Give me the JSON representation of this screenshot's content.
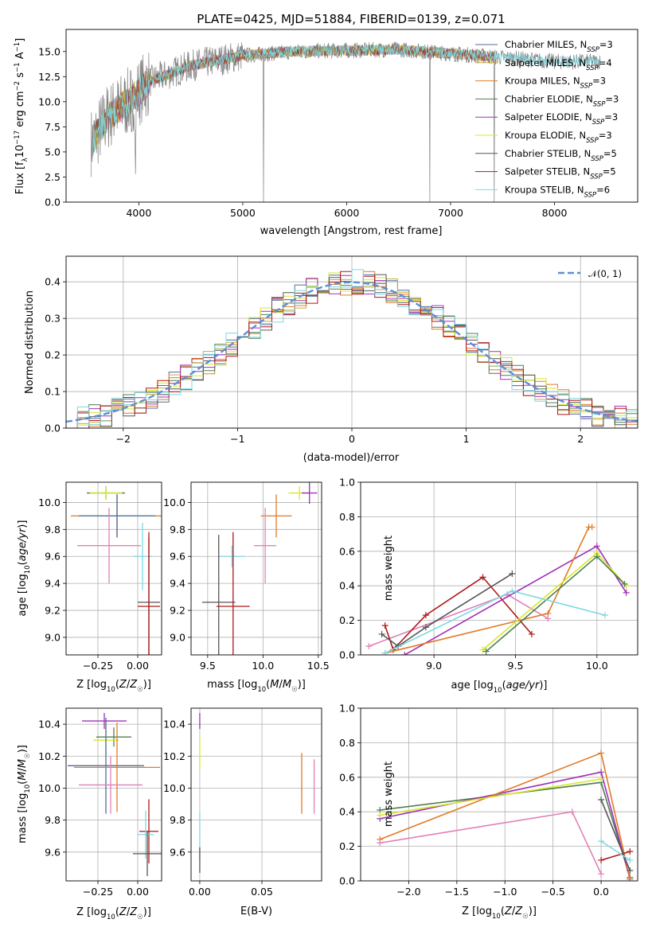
{
  "chart_data": [
    {
      "type": "line",
      "title": "PLATE=0425, MJD=51884, FIBERID=0139, z=0.071",
      "xlabel": "wavelength [Angstrom, rest frame]",
      "ylabel": "Flux [f_λ 10^-17 erg cm^-2 s^-1 A^-1]",
      "xlim": [
        3300,
        8800
      ],
      "ylim": [
        0,
        17.2
      ],
      "xticks": [
        "4000",
        "5000",
        "6000",
        "7000",
        "8000"
      ],
      "yticks": [
        "0.0",
        "2.5",
        "5.0",
        "7.5",
        "10.0",
        "12.5",
        "15.0"
      ],
      "grid": false,
      "legend_position": "right",
      "series": [
        {
          "name": "Chabrier MILES, N_SSP=3",
          "color": "#4d6e9e"
        },
        {
          "name": "Salpeter MILES, N_SSP=4",
          "color": "#c8ac3a"
        },
        {
          "name": "Kroupa MILES, N_SSP=3",
          "color": "#e07b28"
        },
        {
          "name": "Chabrier ELODIE, N_SSP=3",
          "color": "#4e7f4e"
        },
        {
          "name": "Salpeter ELODIE, N_SSP=3",
          "color": "#a030b8"
        },
        {
          "name": "Kroupa ELODIE, N_SSP=3",
          "color": "#d7e82a"
        },
        {
          "name": "Chabrier STELIB, N_SSP=5",
          "color": "#555555"
        },
        {
          "name": "Salpeter STELIB, N_SSP=5",
          "color": "#b01818"
        },
        {
          "name": "Kroupa STELIB, N_SSP=6",
          "color": "#7ed8e0"
        }
      ],
      "continuum": {
        "x": [
          3550,
          3700,
          3900,
          4100,
          4500,
          5000,
          5500,
          6000,
          6500,
          7000,
          7500,
          8000,
          8400
        ],
        "y": [
          6.0,
          8.5,
          10.0,
          12.0,
          13.6,
          14.6,
          15.0,
          15.1,
          15.2,
          14.8,
          14.4,
          14.0,
          14.0
        ]
      }
    },
    {
      "type": "line",
      "xlabel": "(data-model)/error",
      "ylabel": "Normed distribution",
      "xlim": [
        -2.5,
        2.5
      ],
      "ylim": [
        0,
        0.47
      ],
      "xticks": [
        "−2",
        "−1",
        "0",
        "1",
        "2"
      ],
      "yticks": [
        "0.0",
        "0.1",
        "0.2",
        "0.3",
        "0.4"
      ],
      "grid": true,
      "legend_position": "top-right",
      "series": [
        {
          "name": "𝒩(0, 1)",
          "function": "gaussian",
          "mean": 0,
          "sigma": 1,
          "color": "#5b8fd6"
        }
      ]
    },
    {
      "type": "scatter",
      "xlabel": "Z [log10(Z/Z☉)]",
      "ylabel": "age [log10(age/yr)]",
      "xlim": [
        -0.45,
        0.15
      ],
      "ylim": [
        8.87,
        10.15
      ],
      "xticks": [
        "−0.25",
        "0.00"
      ],
      "yticks": [
        "9.0",
        "9.2",
        "9.4",
        "9.6",
        "9.8",
        "10.0"
      ],
      "grid": true,
      "points": [
        {
          "x": -0.2,
          "y": 10.07,
          "xerr": 0.12,
          "yerr": 0.05,
          "color": "#4e7f4e"
        },
        {
          "x": -0.2,
          "y": 10.07,
          "xerr": 0.1,
          "yerr": 0.05,
          "color": "#d7e82a"
        },
        {
          "x": -0.13,
          "y": 9.9,
          "xerr": 0.29,
          "yerr": 0.16,
          "color": "#e07b28"
        },
        {
          "x": -0.13,
          "y": 9.9,
          "xerr": 0.24,
          "yerr": 0.16,
          "color": "#4d6e9e"
        },
        {
          "x": -0.18,
          "y": 9.68,
          "xerr": 0.2,
          "yerr": 0.28,
          "color": "#e080b8"
        },
        {
          "x": 0.03,
          "y": 9.6,
          "xerr": 0.06,
          "yerr": 0.25,
          "color": "#7ed8e0"
        },
        {
          "x": 0.07,
          "y": 9.26,
          "xerr": 0.07,
          "yerr": 0.48,
          "color": "#555555"
        },
        {
          "x": 0.07,
          "y": 9.23,
          "xerr": 0.07,
          "yerr": 0.55,
          "color": "#b01818"
        }
      ]
    },
    {
      "type": "scatter",
      "xlabel": "mass [log10(M/M☉)]",
      "ylabel": "",
      "xlim": [
        9.35,
        10.53
      ],
      "ylim": [
        8.87,
        10.15
      ],
      "xticks": [
        "9.5",
        "10.0",
        "10.5"
      ],
      "yticks": [
        "9.0",
        "9.2",
        "9.4",
        "9.6",
        "9.8",
        "10.0"
      ],
      "grid": true,
      "points": [
        {
          "x": 10.33,
          "y": 10.07,
          "xerr": 0.1,
          "yerr": 0.05,
          "color": "#d7e82a"
        },
        {
          "x": 10.42,
          "y": 10.07,
          "xerr": 0.07,
          "yerr": 0.08,
          "color": "#a030b8"
        },
        {
          "x": 10.12,
          "y": 9.9,
          "xerr": 0.14,
          "yerr": 0.16,
          "color": "#e07b28"
        },
        {
          "x": 10.02,
          "y": 9.68,
          "xerr": 0.1,
          "yerr": 0.28,
          "color": "#e080b8"
        },
        {
          "x": 9.72,
          "y": 9.6,
          "xerr": 0.12,
          "yerr": 0.08,
          "color": "#7ed8e0"
        },
        {
          "x": 9.6,
          "y": 9.26,
          "xerr": 0.15,
          "yerr": 0.5,
          "color": "#555555"
        },
        {
          "x": 9.73,
          "y": 9.23,
          "xerr": 0.15,
          "yerr": 0.55,
          "color": "#b01818"
        }
      ]
    },
    {
      "type": "line",
      "xlabel": "age  [log10(age/yr)]",
      "ylabel": "mass weight",
      "xlim": [
        8.55,
        10.25
      ],
      "ylim": [
        0,
        1.0
      ],
      "xticks": [
        "9.0",
        "9.5",
        "10.0"
      ],
      "yticks": [
        "0.0",
        "0.2",
        "0.4",
        "0.6",
        "0.8",
        "1.0"
      ],
      "grid": true,
      "series": [
        {
          "color": "#e080b8",
          "x": [
            8.6,
            9.45,
            9.7
          ],
          "y": [
            0.05,
            0.35,
            0.21
          ]
        },
        {
          "color": "#b01818",
          "x": [
            8.7,
            8.75,
            8.95,
            9.3,
            9.6
          ],
          "y": [
            0.17,
            0.03,
            0.23,
            0.45,
            0.12
          ]
        },
        {
          "color": "#555555",
          "x": [
            8.68,
            8.78,
            8.95,
            9.48
          ],
          "y": [
            0.12,
            0.05,
            0.16,
            0.47
          ]
        },
        {
          "color": "#a030b8",
          "x": [
            8.82,
            10.0,
            10.18
          ],
          "y": [
            0.0,
            0.63,
            0.36
          ]
        },
        {
          "color": "#e07b28",
          "x": [
            8.7,
            9.7,
            9.95,
            9.97
          ],
          "y": [
            0.01,
            0.24,
            0.74,
            0.74
          ]
        },
        {
          "color": "#d7e82a",
          "x": [
            9.3,
            10.0,
            10.18
          ],
          "y": [
            0.03,
            0.59,
            0.4
          ]
        },
        {
          "color": "#4e7f4e",
          "x": [
            9.32,
            10.0,
            10.17
          ],
          "y": [
            0.02,
            0.57,
            0.41
          ]
        },
        {
          "color": "#7ed8e0",
          "x": [
            8.7,
            9.48,
            10.05
          ],
          "y": [
            0.01,
            0.37,
            0.23
          ]
        }
      ]
    },
    {
      "type": "scatter",
      "xlabel": "Z [log10(Z/Z☉)]",
      "ylabel": "mass [log10(M/M☉)]",
      "xlim": [
        -0.45,
        0.15
      ],
      "ylim": [
        9.42,
        10.5
      ],
      "xticks": [
        "−0.25",
        "0.00"
      ],
      "yticks": [
        "9.6",
        "9.8",
        "10.0",
        "10.2",
        "10.4"
      ],
      "grid": true,
      "points": [
        {
          "x": -0.21,
          "y": 10.42,
          "xerr": 0.14,
          "yerr": 0.05,
          "color": "#a030b8"
        },
        {
          "x": -0.15,
          "y": 10.32,
          "xerr": 0.11,
          "yerr": 0.06,
          "color": "#4e7f4e"
        },
        {
          "x": -0.2,
          "y": 10.3,
          "xerr": 0.08,
          "yerr": 0.1,
          "color": "#d7e82a"
        },
        {
          "x": -0.2,
          "y": 10.14,
          "xerr": 0.24,
          "yerr": 0.3,
          "color": "#4d6e9e"
        },
        {
          "x": -0.13,
          "y": 10.13,
          "xerr": 0.27,
          "yerr": 0.28,
          "color": "#e07b28"
        },
        {
          "x": -0.17,
          "y": 10.02,
          "xerr": 0.2,
          "yerr": 0.18,
          "color": "#e080b8"
        },
        {
          "x": 0.07,
          "y": 9.73,
          "xerr": 0.06,
          "yerr": 0.2,
          "color": "#b01818"
        },
        {
          "x": 0.05,
          "y": 9.71,
          "xerr": 0.05,
          "yerr": 0.15,
          "color": "#7ed8e0"
        },
        {
          "x": 0.06,
          "y": 9.59,
          "xerr": 0.09,
          "yerr": 0.14,
          "color": "#555555"
        }
      ]
    },
    {
      "type": "scatter",
      "xlabel": "E(B-V)",
      "ylabel": "",
      "xlim": [
        -0.007,
        0.098
      ],
      "ylim": [
        9.42,
        10.5
      ],
      "xticks": [
        "0.00",
        "0.05"
      ],
      "yticks": [
        "9.6",
        "9.8",
        "10.0",
        "10.2",
        "10.4"
      ],
      "grid": true,
      "points": [
        {
          "x": 0.0,
          "y": 10.42,
          "xerr": 0,
          "yerr": 0.05,
          "color": "#a030b8"
        },
        {
          "x": 0.0,
          "y": 10.22,
          "xerr": 0,
          "yerr": 0.1,
          "color": "#d7e82a"
        },
        {
          "x": 0.0,
          "y": 9.7,
          "xerr": 0,
          "yerr": 0.15,
          "color": "#7ed8e0"
        },
        {
          "x": 0.0,
          "y": 9.55,
          "xerr": 0,
          "yerr": 0.08,
          "color": "#555555"
        },
        {
          "x": 0.082,
          "y": 10.03,
          "xerr": 0,
          "yerr": 0.19,
          "color": "#e07b28"
        },
        {
          "x": 0.092,
          "y": 10.01,
          "xerr": 0,
          "yerr": 0.17,
          "color": "#e080b8"
        }
      ]
    },
    {
      "type": "line",
      "xlabel": "Z [log10(Z/Z☉)]",
      "ylabel": "mass weight",
      "xlim": [
        -2.5,
        0.38
      ],
      "ylim": [
        0,
        1.0
      ],
      "xticks": [
        "−2.0",
        "−1.5",
        "−1.0",
        "−0.5",
        "0.0"
      ],
      "yticks": [
        "0.0",
        "0.2",
        "0.4",
        "0.6",
        "0.8",
        "1.0"
      ],
      "grid": true,
      "series": [
        {
          "color": "#4e7f4e",
          "x": [
            -2.3,
            0.0,
            0.3
          ],
          "y": [
            0.41,
            0.57,
            0.02
          ]
        },
        {
          "color": "#a030b8",
          "x": [
            -2.3,
            0.0,
            0.3
          ],
          "y": [
            0.36,
            0.63,
            0.01
          ]
        },
        {
          "color": "#e07b28",
          "x": [
            -2.3,
            0.0,
            0.3
          ],
          "y": [
            0.24,
            0.74,
            0.01
          ]
        },
        {
          "color": "#e080b8",
          "x": [
            -2.3,
            -0.3,
            0.0
          ],
          "y": [
            0.22,
            0.4,
            0.04
          ]
        },
        {
          "color": "#d7e82a",
          "x": [
            -2.3,
            0.0
          ],
          "y": [
            0.38,
            0.59
          ]
        },
        {
          "color": "#b01818",
          "x": [
            0.0,
            0.3
          ],
          "y": [
            0.12,
            0.17
          ]
        },
        {
          "color": "#555555",
          "x": [
            0.0,
            0.3
          ],
          "y": [
            0.47,
            0.06
          ]
        },
        {
          "color": "#7ed8e0",
          "x": [
            0.0,
            0.3
          ],
          "y": [
            0.23,
            0.12
          ]
        }
      ]
    }
  ]
}
